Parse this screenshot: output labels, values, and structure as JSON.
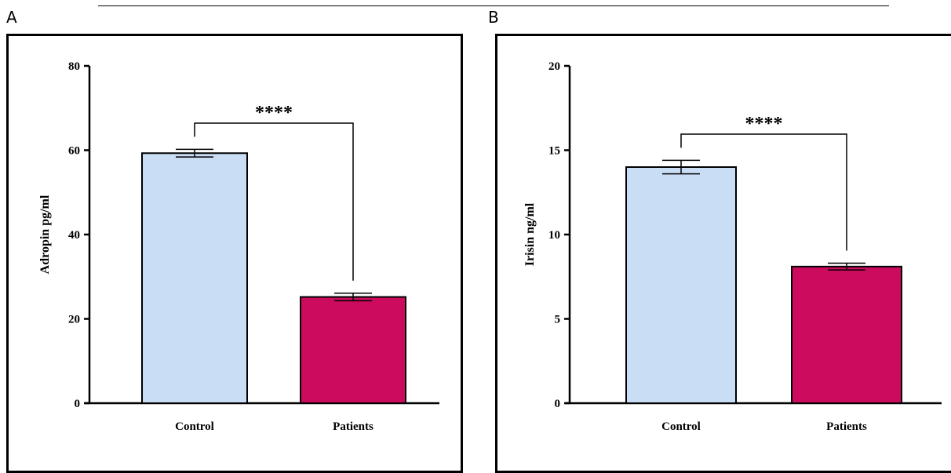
{
  "panels": [
    {
      "letter": "A"
    },
    {
      "letter": "B"
    }
  ],
  "chart_data": [
    {
      "type": "bar",
      "categories": [
        "Control",
        "Patients"
      ],
      "values": [
        59.3,
        25.2
      ],
      "errors": [
        0.9,
        0.9
      ],
      "bar_colors": [
        "#c9ddf5",
        "#cc0a5e"
      ],
      "ylabel": "Adropin pg/ml",
      "xlabel": "",
      "ylim": [
        0,
        80
      ],
      "yticks": [
        0,
        20,
        40,
        60,
        80
      ],
      "significance": "****",
      "grid": false
    },
    {
      "type": "bar",
      "categories": [
        "Control",
        "Patients"
      ],
      "values": [
        14.0,
        8.1
      ],
      "errors": [
        0.4,
        0.2
      ],
      "bar_colors": [
        "#c9ddf5",
        "#cc0a5e"
      ],
      "ylabel": "Irisin ng/ml",
      "xlabel": "",
      "ylim": [
        0,
        20
      ],
      "yticks": [
        0,
        5,
        10,
        15,
        20
      ],
      "significance": "****",
      "grid": false
    }
  ]
}
